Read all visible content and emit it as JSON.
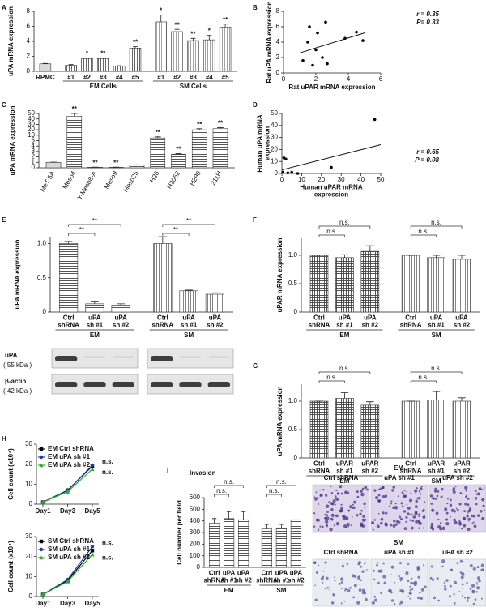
{
  "chart_data": [
    {
      "type": "bar",
      "panel": "A",
      "ylabel": "uPA mRNA expression",
      "ylim": [
        0,
        8
      ],
      "yticks": [
        0,
        2,
        4,
        6,
        8
      ],
      "groups": [
        {
          "name": null,
          "categories": [
            "RPMC"
          ],
          "values": [
            1.0
          ],
          "errors": [
            0.05
          ],
          "annotations": [
            null
          ],
          "pattern": "solid",
          "color": "#d9d9d9"
        },
        {
          "name": "EM Cells",
          "categories": [
            "#1",
            "#2",
            "#3",
            "#4",
            "#5"
          ],
          "values": [
            0.8,
            1.7,
            1.7,
            0.7,
            3.1
          ],
          "errors": [
            0.1,
            0.1,
            0.08,
            0.05,
            0.2
          ],
          "annotations": [
            null,
            "*",
            "**",
            null,
            "**"
          ],
          "pattern": "vertical",
          "color": "#555555"
        },
        {
          "name": "SM Cells",
          "categories": [
            "#1",
            "#2",
            "#3",
            "#4",
            "#5"
          ],
          "values": [
            6.6,
            5.3,
            4.1,
            4.2,
            5.9
          ],
          "errors": [
            0.9,
            0.3,
            0.3,
            0.6,
            0.4
          ],
          "annotations": [
            "*",
            "**",
            "**",
            "*",
            "**"
          ],
          "pattern": "vertical",
          "color": "#999999"
        }
      ]
    },
    {
      "type": "scatter",
      "panel": "B",
      "xlabel": "Rat uPAR mRNA expression",
      "ylabel": "Rat uPA mRNA expression",
      "x": [
        1.2,
        1.5,
        1.6,
        1.8,
        2.0,
        2.1,
        2.4,
        2.6,
        2.7,
        3.8,
        4.5,
        4.9
      ],
      "y": [
        1.6,
        4.0,
        6.0,
        1.0,
        3.0,
        5.2,
        2.0,
        6.6,
        1.2,
        4.5,
        5.3,
        4.2
      ],
      "xlim": [
        0,
        6
      ],
      "xticks": [
        0,
        2,
        4,
        6
      ],
      "ylim": [
        0,
        8
      ],
      "yticks": [
        0,
        2,
        4,
        6,
        8
      ],
      "trendline": {
        "x": [
          1,
          5
        ],
        "y": [
          2.6,
          5.2
        ]
      },
      "notes": [
        "r = 0.35",
        "P= 0.33"
      ],
      "note_corner": "upper right"
    },
    {
      "type": "bar",
      "panel": "C",
      "ylabel": "uPA mRNA expression",
      "broken_axis": true,
      "xlabel_rotate": true,
      "ylim": [
        0,
        50
      ],
      "yticks": [
        0,
        1,
        2,
        3,
        4,
        5,
        10,
        20,
        30,
        40,
        50
      ],
      "groups": [
        {
          "name": null,
          "categories": [
            "MeT-5A"
          ],
          "values": [
            1.0
          ],
          "errors": [
            0.05
          ],
          "annotations": [
            null
          ],
          "pattern": "solid",
          "color": "#d9d9d9"
        },
        {
          "name": null,
          "categories": [
            "Meso4",
            "Y-Meso8-A",
            "Meso9",
            "Meso25",
            "H28",
            "H2052",
            "H290",
            "211H"
          ],
          "values": [
            45,
            0.1,
            0.1,
            0.5,
            7.5,
            2.5,
            20,
            22
          ],
          "errors": [
            5,
            0.02,
            0.02,
            0.05,
            1,
            0.1,
            2,
            2
          ],
          "annotations": [
            "**",
            "**",
            "**",
            null,
            "**",
            "**",
            "**",
            "**"
          ],
          "pattern": "horizontal",
          "color": "#444444"
        }
      ]
    },
    {
      "type": "scatter",
      "panel": "D",
      "xlabel": "Human uPAR mRNA expression",
      "ylabel": "Human uPA mRNA expression",
      "x": [
        0.5,
        1,
        2,
        3,
        5,
        8,
        25,
        47
      ],
      "y": [
        1,
        13,
        12,
        0.5,
        1,
        0,
        5,
        45
      ],
      "xlim": [
        0,
        50
      ],
      "xticks": [
        0,
        10,
        20,
        30,
        40,
        50
      ],
      "ylim": [
        0,
        50
      ],
      "yticks": [
        0,
        10,
        20,
        30,
        40,
        50
      ],
      "trendline": {
        "x": [
          0,
          50
        ],
        "y": [
          3,
          24
        ]
      },
      "notes": [
        "r = 0.65",
        "P = 0.08"
      ],
      "note_corner": "lower right"
    },
    {
      "type": "bar",
      "panel": "E",
      "ylabel": "uPA mRNA expression",
      "ylim": [
        0,
        1.1
      ],
      "yticks": [
        0,
        0.5,
        {
          "value": 1,
          "label": "1.0"
        }
      ],
      "groups": [
        {
          "name": "EM",
          "categories": [
            "Ctrl shRNA",
            "uPA sh #1",
            "uPA sh #2"
          ],
          "values": [
            1.0,
            0.12,
            0.1
          ],
          "errors": [
            0.03,
            0.04,
            0.02
          ],
          "pattern": "horizontal",
          "color": "#444444",
          "comparisons": [
            {
              "pair": [
                "Ctrl shRNA",
                "uPA sh #1"
              ],
              "label": "**"
            },
            {
              "pair": [
                "Ctrl shRNA",
                "uPA sh #2"
              ],
              "label": "**"
            }
          ]
        },
        {
          "name": "SM",
          "categories": [
            "Ctrl shRNA",
            "uPA sh #1",
            "uPA sh #2"
          ],
          "values": [
            1.0,
            0.31,
            0.26
          ],
          "errors": [
            0.1,
            0.01,
            0.02
          ],
          "pattern": "vertical",
          "color": "#777777",
          "comparisons": [
            {
              "pair": [
                "Ctrl shRNA",
                "uPA sh #1"
              ],
              "label": "**"
            },
            {
              "pair": [
                "Ctrl shRNA",
                "uPA sh #2"
              ],
              "label": "**"
            }
          ]
        }
      ]
    },
    {
      "type": "bar",
      "panel": "F",
      "ylabel": "uPAR mRNA expression",
      "ylim": [
        0,
        1.3
      ],
      "yticks": [
        0,
        0.5,
        {
          "value": 1,
          "label": "1.0"
        }
      ],
      "groups": [
        {
          "name": "EM",
          "categories": [
            "Ctrl shRNA",
            "uPA sh #1",
            "uPA sh #2"
          ],
          "values": [
            1.0,
            0.96,
            1.07
          ],
          "errors": [
            0,
            0.05,
            0.1
          ],
          "pattern": "crosshatch",
          "color": "#444444",
          "comparisons": [
            {
              "pair": [
                "Ctrl shRNA",
                "uPA sh #1"
              ],
              "label": "n.s."
            },
            {
              "pair": [
                "Ctrl shRNA",
                "uPA sh #2"
              ],
              "label": "n.s."
            }
          ]
        },
        {
          "name": "SM",
          "categories": [
            "Ctrl shRNA",
            "uPA sh #1",
            "uPA sh #2"
          ],
          "values": [
            1.0,
            0.96,
            0.93
          ],
          "errors": [
            0,
            0.04,
            0.07
          ],
          "pattern": "vertical",
          "color": "#777777",
          "comparisons": [
            {
              "pair": [
                "Ctrl shRNA",
                "uPA sh #1"
              ],
              "label": "n.s."
            },
            {
              "pair": [
                "Ctrl shRNA",
                "uPA sh #2"
              ],
              "label": "n.s."
            }
          ]
        }
      ]
    },
    {
      "type": "bar",
      "panel": "G",
      "ylabel": "uPA mRNA expression",
      "ylim": [
        0,
        1.3
      ],
      "yticks": [
        0,
        0.5,
        {
          "value": 1,
          "label": "1.0"
        }
      ],
      "groups": [
        {
          "name": "EM",
          "categories": [
            "Ctrl shRNA",
            "uPAR sh #1",
            "uPAR sh #2"
          ],
          "values": [
            1.0,
            1.05,
            0.93
          ],
          "errors": [
            0,
            0.1,
            0.06
          ],
          "pattern": "crosshatch",
          "color": "#444444",
          "comparisons": [
            {
              "pair": [
                "Ctrl shRNA",
                "uPAR sh #1"
              ],
              "label": "n.s."
            },
            {
              "pair": [
                "Ctrl shRNA",
                "uPAR sh #2"
              ],
              "label": "n.s."
            }
          ]
        },
        {
          "name": "SM",
          "categories": [
            "Ctrl shRNA",
            "uPAR sh #1",
            "uPAR sh #2"
          ],
          "values": [
            1.0,
            1.02,
            1.0
          ],
          "errors": [
            0,
            0.15,
            0.06
          ],
          "pattern": "vertical",
          "color": "#777777",
          "comparisons": [
            {
              "pair": [
                "Ctrl shRNA",
                "uPAR sh #1"
              ],
              "label": "n.s."
            },
            {
              "pair": [
                "Ctrl shRNA",
                "uPAR sh #2"
              ],
              "label": "n.s."
            }
          ]
        }
      ]
    },
    {
      "type": "line",
      "panel": "H",
      "ylabel": "Cell count (x10⁴)",
      "categories": [
        "Day1",
        "Day3",
        "Day5"
      ],
      "ylim": [
        0,
        30
      ],
      "yticks": [
        0,
        10,
        20,
        30
      ],
      "legend": "upper left",
      "series": [
        {
          "name": "EM Ctrl shRNA",
          "color": "#000000",
          "marker": "square",
          "values": [
            1,
            7,
            19
          ]
        },
        {
          "name": "EM uPA sh #1",
          "color": "#1f3f9f",
          "marker": "circle",
          "values": [
            1,
            6.8,
            19.5
          ],
          "annotation": "n.s."
        },
        {
          "name": "EM uPA sh #2",
          "color": "#33aa33",
          "marker": "triangle",
          "values": [
            1,
            6.2,
            17.5
          ],
          "annotation": "n.s."
        }
      ]
    },
    {
      "type": "line",
      "ylabel": "Cell count (x10⁴)",
      "categories": [
        "Day1",
        "Day3",
        "Day5"
      ],
      "ylim": [
        0,
        30
      ],
      "yticks": [
        0,
        10,
        20,
        30
      ],
      "legend": "upper left",
      "series": [
        {
          "name": "SM Ctrl shRNA",
          "color": "#000000",
          "marker": "square",
          "values": [
            1,
            8,
            23
          ]
        },
        {
          "name": "SM uPA sh #1",
          "color": "#1f3f9f",
          "marker": "circle",
          "values": [
            1,
            8.5,
            25
          ],
          "annotation": "n.s."
        },
        {
          "name": "SM uPA sh #2",
          "color": "#33aa33",
          "marker": "triangle",
          "values": [
            1,
            7.5,
            21
          ],
          "annotation": "n.s."
        }
      ]
    },
    {
      "type": "bar",
      "panel": "I",
      "title": "Invasion",
      "ylabel": "Cell number per field",
      "ylim": [
        0,
        600
      ],
      "yticks": [
        0,
        100,
        200,
        300,
        400,
        500,
        600
      ],
      "groups": [
        {
          "name": "EM",
          "categories": [
            "Ctrl shRNA",
            "uPA sh #1",
            "uPA sh #2"
          ],
          "values": [
            380,
            420,
            410
          ],
          "errors": [
            40,
            60,
            70
          ],
          "pattern": "horizontal",
          "color": "#444444",
          "comparisons": [
            {
              "pair": [
                "Ctrl shRNA",
                "uPA sh #1"
              ],
              "label": "n.s."
            },
            {
              "pair": [
                "Ctrl shRNA",
                "uPA sh #2"
              ],
              "label": "n.s."
            }
          ]
        },
        {
          "name": "SM",
          "categories": [
            "Ctrl shRNA",
            "uPA sh #1",
            "uPA sh #2"
          ],
          "values": [
            330,
            340,
            410
          ],
          "errors": [
            40,
            30,
            40
          ],
          "pattern": "horizontal",
          "color": "#444444",
          "comparisons": [
            {
              "pair": [
                "Ctrl shRNA",
                "uPA sh #1"
              ],
              "label": "n.s."
            },
            {
              "pair": [
                "Ctrl shRNA",
                "uPA sh #2"
              ],
              "label": "n.s."
            }
          ]
        }
      ]
    }
  ],
  "western_blot": {
    "rows": [
      {
        "protein": "uPA",
        "size": "( 55 kDa )"
      },
      {
        "protein": "β-actin",
        "size": "( 42 kDa )"
      }
    ]
  },
  "invasion_images": {
    "groups": [
      {
        "name": "EM",
        "labels": [
          "Ctrl shRNA",
          "uPA sh #1",
          "uPA sh #2"
        ]
      },
      {
        "name": "SM",
        "labels": [
          "Ctrl shRNA",
          "uPA sh #1",
          "uPA sh #2"
        ]
      }
    ]
  }
}
